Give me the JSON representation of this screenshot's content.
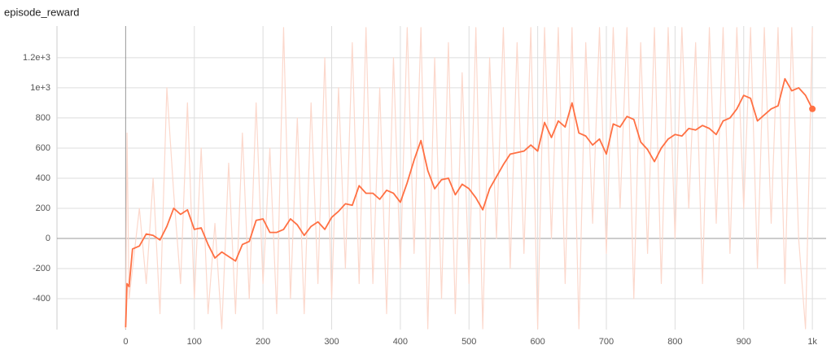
{
  "chart_data": {
    "type": "line",
    "title": "episode_reward",
    "x": [
      0,
      2,
      5,
      10,
      20,
      30,
      40,
      50,
      60,
      70,
      80,
      90,
      100,
      110,
      120,
      130,
      140,
      150,
      160,
      170,
      180,
      190,
      200,
      210,
      220,
      230,
      240,
      250,
      260,
      270,
      280,
      290,
      300,
      310,
      320,
      330,
      340,
      350,
      360,
      370,
      380,
      390,
      400,
      410,
      420,
      430,
      440,
      450,
      460,
      470,
      480,
      490,
      500,
      510,
      520,
      530,
      540,
      550,
      560,
      570,
      580,
      590,
      600,
      610,
      620,
      630,
      640,
      650,
      660,
      670,
      680,
      690,
      700,
      710,
      720,
      730,
      740,
      750,
      760,
      770,
      780,
      790,
      800,
      810,
      820,
      830,
      840,
      850,
      860,
      870,
      880,
      890,
      900,
      910,
      920,
      930,
      940,
      950,
      960,
      970,
      980,
      990,
      1000
    ],
    "series": [
      {
        "color": "#fcd8cc",
        "values": [
          -600,
          700,
          -400,
          -200,
          200,
          -300,
          400,
          -500,
          1000,
          300,
          -300,
          900,
          -400,
          600,
          -500,
          100,
          -600,
          500,
          -500,
          700,
          -400,
          900,
          -300,
          600,
          -500,
          1400,
          -400,
          800,
          -500,
          900,
          -300,
          1200,
          -400,
          1000,
          -200,
          1300,
          -300,
          1400,
          -300,
          1000,
          -500,
          1200,
          -200,
          1400,
          -100,
          1400,
          -600,
          1200,
          -400,
          1300,
          -500,
          1100,
          -300,
          1400,
          -600,
          1200,
          0,
          1400,
          -200,
          1300,
          -100,
          1400,
          -600,
          1400,
          0,
          1400,
          -300,
          1400,
          -600,
          1300,
          100,
          1400,
          -100,
          1400,
          200,
          1400,
          -400,
          1300,
          -100,
          1400,
          -300,
          1400,
          0,
          1400,
          200,
          1300,
          -300,
          1400,
          100,
          1400,
          -100,
          1400,
          200,
          1400,
          -200,
          1400,
          100,
          1400,
          -300,
          1400,
          0,
          -600,
          1400
        ]
      },
      {
        "color": "#ff7043",
        "values": [
          -590,
          -300,
          -320,
          -70,
          -50,
          30,
          20,
          -10,
          80,
          200,
          160,
          190,
          60,
          70,
          -40,
          -130,
          -90,
          -120,
          -150,
          -40,
          -20,
          120,
          130,
          40,
          40,
          60,
          130,
          90,
          20,
          80,
          110,
          60,
          140,
          180,
          230,
          220,
          350,
          300,
          300,
          260,
          320,
          300,
          240,
          370,
          520,
          650,
          450,
          330,
          390,
          400,
          290,
          360,
          330,
          270,
          190,
          330,
          410,
          490,
          560,
          570,
          580,
          620,
          580,
          770,
          670,
          780,
          740,
          900,
          700,
          680,
          620,
          660,
          560,
          760,
          740,
          810,
          790,
          640,
          590,
          510,
          600,
          660,
          690,
          680,
          730,
          720,
          750,
          730,
          690,
          780,
          800,
          860,
          950,
          930,
          780,
          820,
          860,
          880,
          1060,
          980,
          1000,
          950,
          860
        ]
      }
    ],
    "xlim": [
      -100,
      1020
    ],
    "ylim": [
      -605,
      1410
    ],
    "xticks": [
      0,
      100,
      200,
      300,
      400,
      500,
      600,
      700,
      800,
      900,
      {
        "value": 1000,
        "label": "1k"
      }
    ],
    "yticks": [
      -400,
      -200,
      0,
      200,
      400,
      600,
      800,
      {
        "value": 1000,
        "label": "1e+3"
      },
      {
        "value": 1200,
        "label": "1.2e+3"
      }
    ],
    "grid": true
  }
}
